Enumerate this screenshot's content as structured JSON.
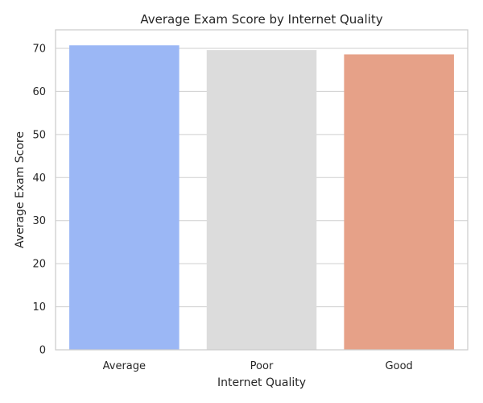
{
  "chart_data": {
    "type": "bar",
    "title": "Average Exam Score by Internet Quality",
    "xlabel": "Internet Quality",
    "ylabel": "Average Exam Score",
    "categories": [
      "Average",
      "Poor",
      "Good"
    ],
    "values": [
      70.7,
      69.6,
      68.6
    ],
    "colors": [
      "#9bb7f5",
      "#dcdcdc",
      "#e6a188"
    ],
    "ylim": [
      0,
      74.3
    ],
    "yticks": [
      0,
      10,
      20,
      30,
      40,
      50,
      60,
      70
    ],
    "grid": "y",
    "legend": "none"
  }
}
